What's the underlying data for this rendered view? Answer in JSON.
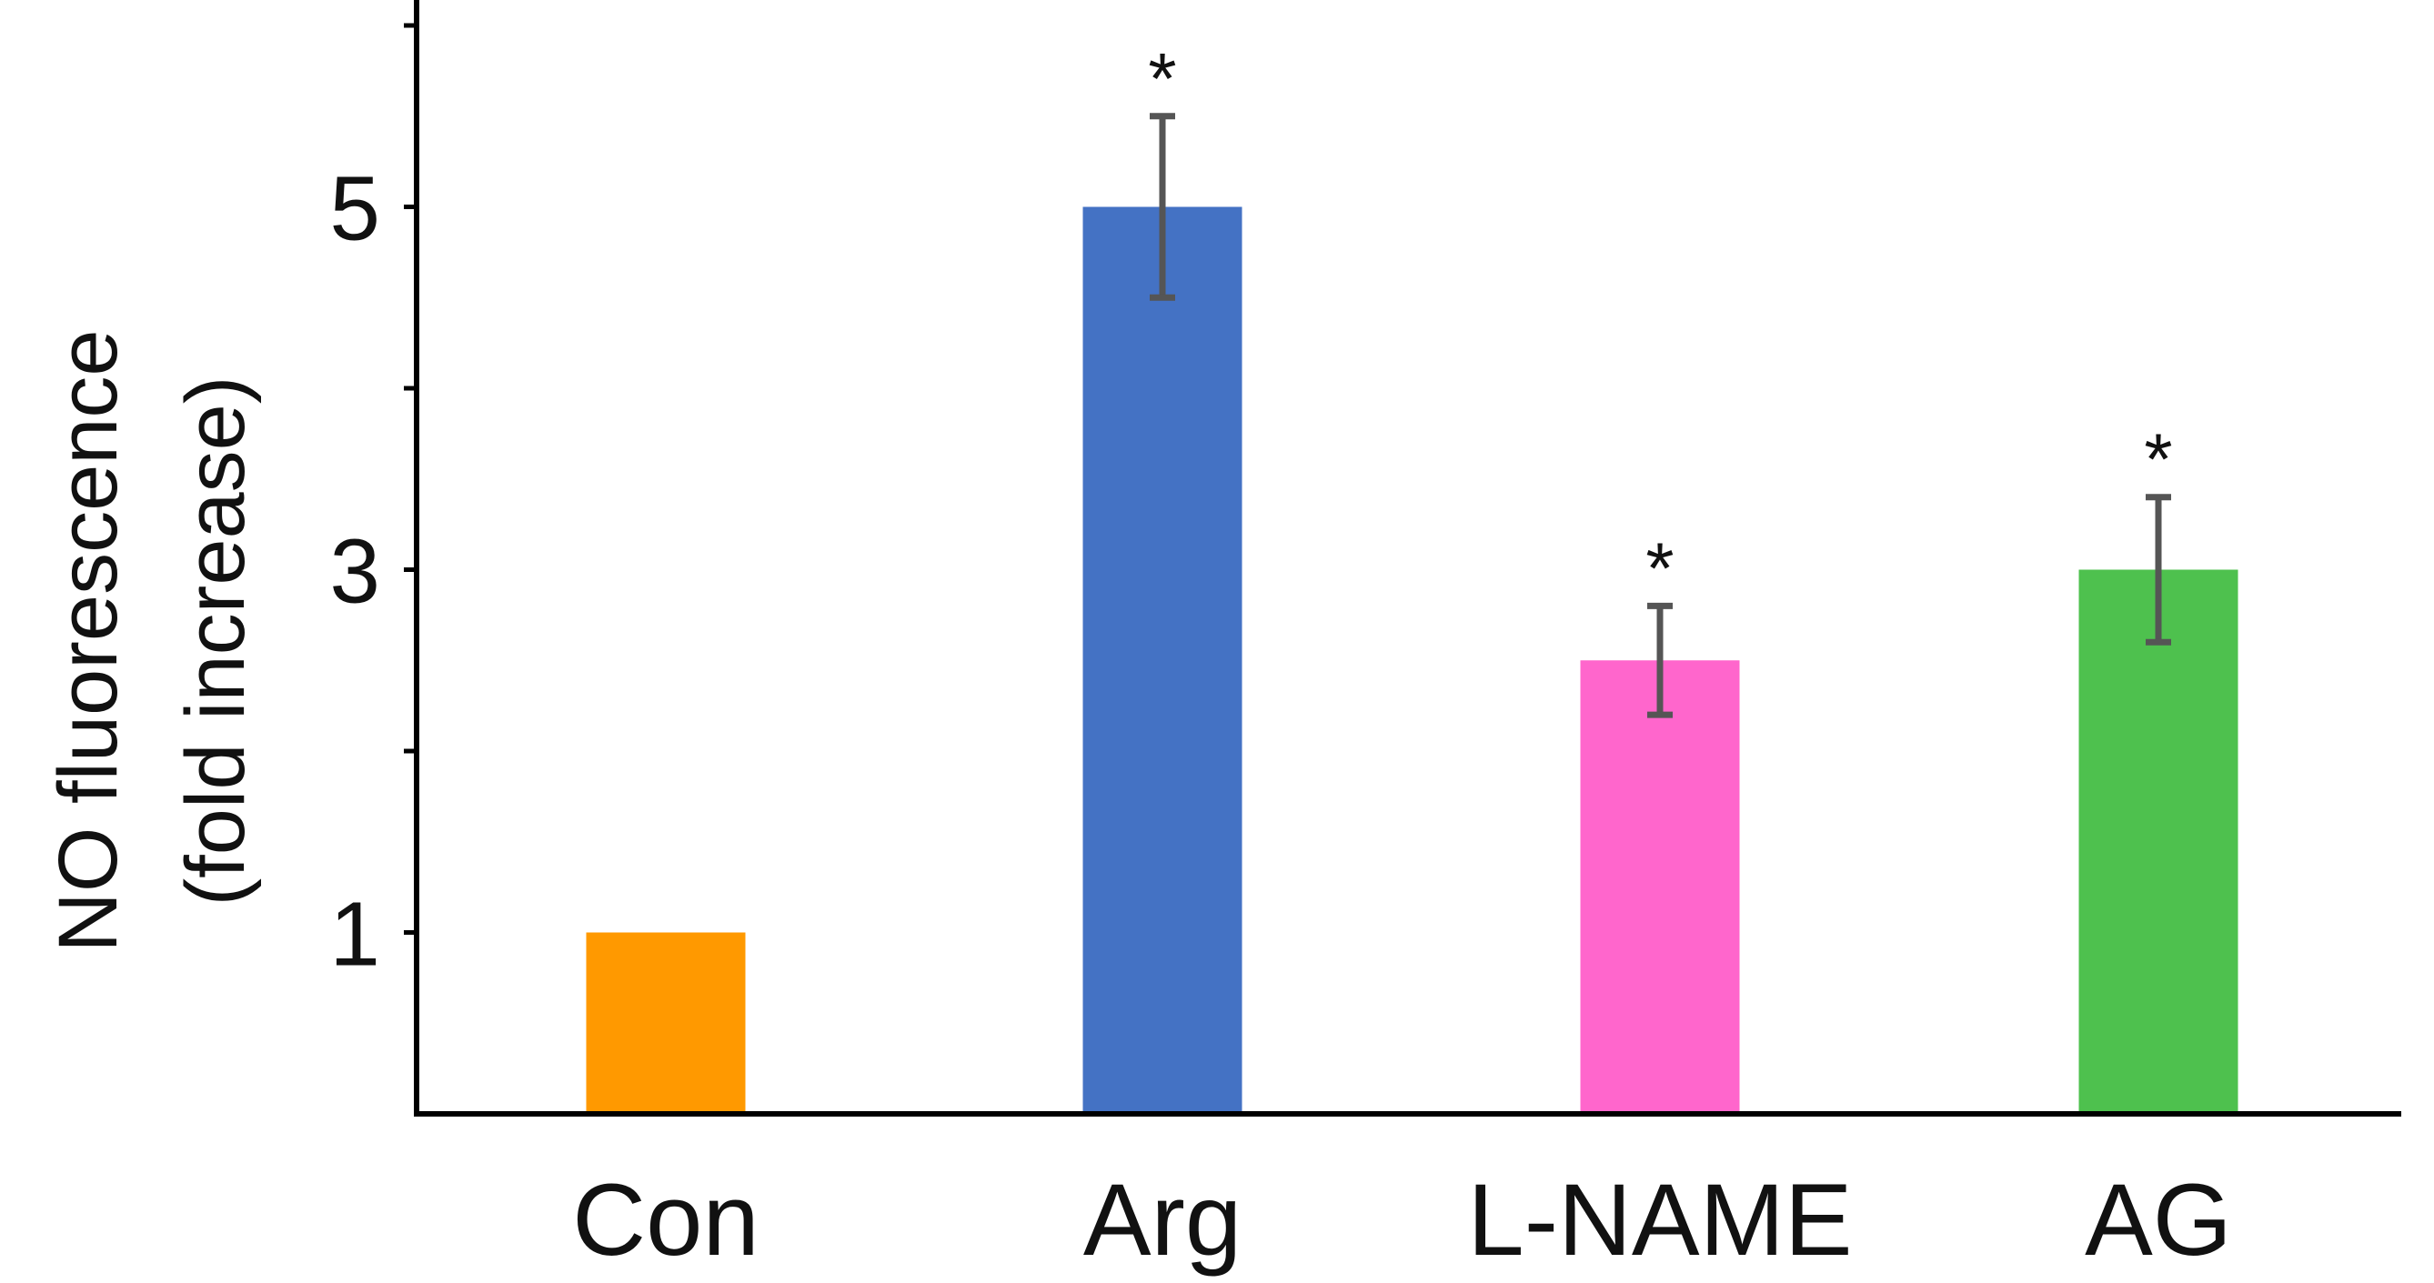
{
  "chart_data": {
    "type": "bar",
    "title": "",
    "xlabel": "",
    "ylabel": [
      "NO fluorescence",
      "(fold increase)"
    ],
    "categories": [
      "Con",
      "Arg",
      "L-NAME",
      "AG"
    ],
    "values": [
      1.0,
      5.0,
      2.5,
      3.0
    ],
    "errors": [
      null,
      0.5,
      0.3,
      0.4
    ],
    "significance": [
      "",
      "*",
      "*",
      "*"
    ],
    "bar_colors": [
      "#FF9900",
      "#4472C4",
      "#FF66CC",
      "#4EC14E"
    ],
    "error_bar_color": "#555555",
    "yticks": [
      1,
      3,
      5
    ],
    "ylim": [
      0,
      6
    ],
    "grid": false,
    "legend": "none"
  }
}
